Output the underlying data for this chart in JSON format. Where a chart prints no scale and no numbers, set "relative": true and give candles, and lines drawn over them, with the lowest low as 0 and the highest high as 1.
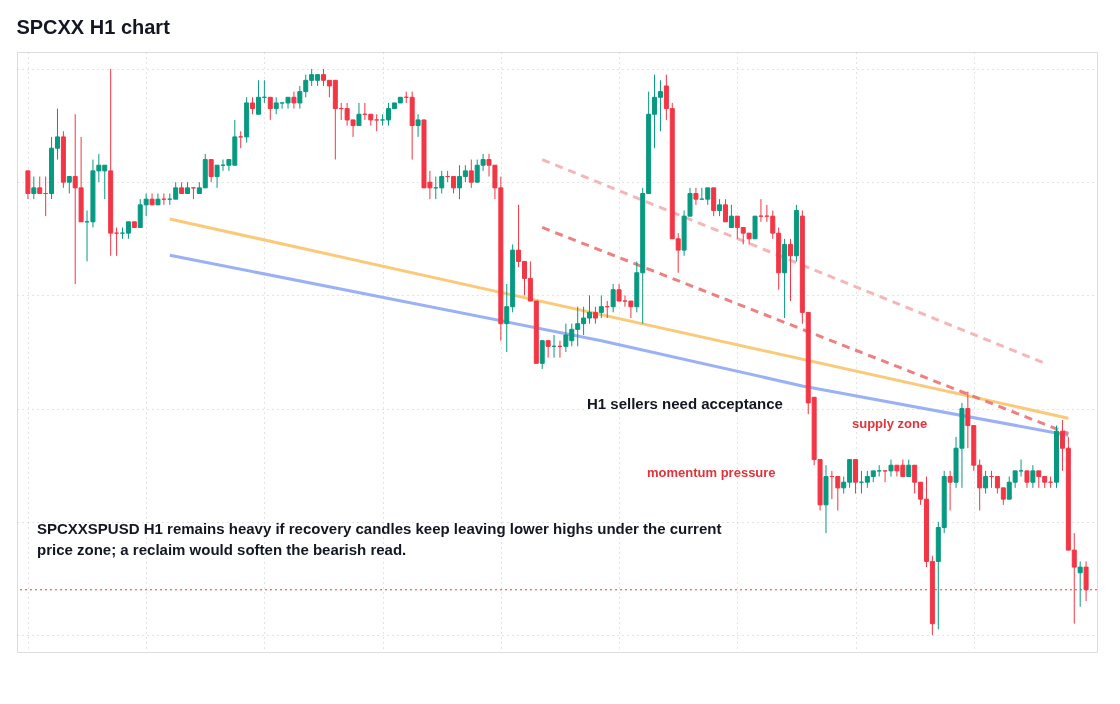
{
  "chart_data": {
    "type": "candlestick",
    "title": "SPCXX H1 chart",
    "relative": true,
    "grid": true,
    "tick_labels": false,
    "categories": [
      null,
      null,
      null,
      null,
      null,
      null,
      null,
      null,
      null,
      null,
      null,
      null,
      null,
      null,
      null,
      null,
      null,
      null,
      null,
      null,
      null,
      null,
      null,
      null,
      null,
      null,
      null,
      null,
      null,
      null,
      null,
      null,
      null,
      null,
      null,
      null,
      null,
      null,
      null,
      null,
      null,
      null,
      null,
      null,
      null,
      null,
      null,
      null,
      null,
      null,
      null,
      null,
      null,
      null,
      null,
      null,
      null,
      null,
      null,
      null,
      null,
      null,
      null,
      null,
      null,
      null,
      null,
      null,
      null,
      null,
      null,
      null,
      null,
      null,
      null,
      null,
      null,
      null,
      null,
      null,
      null,
      null,
      null,
      null,
      null,
      null,
      null,
      null,
      null,
      null,
      null,
      null,
      null,
      null,
      null,
      null,
      null,
      null,
      null,
      null,
      null,
      null,
      null,
      null,
      null,
      null,
      null,
      null,
      null,
      null,
      null,
      null,
      null,
      null,
      null,
      null,
      null,
      null,
      null,
      null,
      null,
      null,
      null,
      null,
      null,
      null,
      null,
      null,
      null,
      null,
      null,
      null,
      null,
      null,
      null,
      null,
      null,
      null,
      null,
      null,
      null,
      null,
      null,
      null,
      null,
      null,
      null,
      null,
      null,
      null,
      null,
      null,
      null,
      null,
      null,
      null,
      null,
      null,
      null,
      null,
      null,
      null,
      null,
      null,
      null,
      null,
      null,
      null,
      null,
      null,
      null,
      null,
      null,
      null,
      null,
      null,
      null,
      null,
      null,
      null
    ],
    "ohlc": [
      [
        0.82,
        0.82,
        0.77,
        0.78
      ],
      [
        0.78,
        0.81,
        0.77,
        0.79
      ],
      [
        0.79,
        0.81,
        0.78,
        0.78
      ],
      [
        0.78,
        0.81,
        0.74,
        0.78
      ],
      [
        0.78,
        0.88,
        0.77,
        0.86
      ],
      [
        0.86,
        0.93,
        0.84,
        0.88
      ],
      [
        0.88,
        0.89,
        0.79,
        0.8
      ],
      [
        0.8,
        0.81,
        0.78,
        0.81
      ],
      [
        0.81,
        0.92,
        0.62,
        0.79
      ],
      [
        0.79,
        0.88,
        0.73,
        0.73
      ],
      [
        0.73,
        0.75,
        0.66,
        0.73
      ],
      [
        0.73,
        0.84,
        0.72,
        0.82
      ],
      [
        0.82,
        0.85,
        0.8,
        0.83
      ],
      [
        0.82,
        0.83,
        0.77,
        0.83
      ],
      [
        0.82,
        1,
        0.67,
        0.71
      ],
      [
        0.71,
        0.72,
        0.67,
        0.71
      ],
      [
        0.71,
        0.72,
        0.7,
        0.71
      ],
      [
        0.71,
        0.73,
        0.7,
        0.73
      ],
      [
        0.73,
        0.73,
        0.72,
        0.72
      ],
      [
        0.72,
        0.77,
        0.72,
        0.76
      ],
      [
        0.76,
        0.78,
        0.74,
        0.77
      ],
      [
        0.77,
        0.78,
        0.76,
        0.76
      ],
      [
        0.76,
        0.78,
        0.76,
        0.77
      ],
      [
        0.77,
        0.78,
        0.76,
        0.77
      ],
      [
        0.77,
        0.78,
        0.76,
        0.77
      ],
      [
        0.77,
        0.8,
        0.77,
        0.79
      ],
      [
        0.79,
        0.8,
        0.78,
        0.78
      ],
      [
        0.78,
        0.8,
        0.78,
        0.79
      ],
      [
        0.79,
        0.79,
        0.77,
        0.79
      ],
      [
        0.78,
        0.8,
        0.78,
        0.79
      ],
      [
        0.79,
        0.85,
        0.79,
        0.84
      ],
      [
        0.84,
        0.84,
        0.8,
        0.81
      ],
      [
        0.81,
        0.83,
        0.79,
        0.83
      ],
      [
        0.83,
        0.84,
        0.82,
        0.83
      ],
      [
        0.83,
        0.84,
        0.82,
        0.84
      ],
      [
        0.83,
        0.91,
        0.83,
        0.88
      ],
      [
        0.88,
        0.89,
        0.86,
        0.88
      ],
      [
        0.88,
        0.95,
        0.87,
        0.94
      ],
      [
        0.94,
        0.95,
        0.92,
        0.93
      ],
      [
        0.92,
        0.98,
        0.92,
        0.95
      ],
      [
        0.95,
        0.98,
        0.94,
        0.95
      ],
      [
        0.95,
        0.95,
        0.91,
        0.93
      ],
      [
        0.93,
        0.95,
        0.92,
        0.94
      ],
      [
        0.94,
        0.94,
        0.93,
        0.94
      ],
      [
        0.94,
        0.95,
        0.93,
        0.95
      ],
      [
        0.95,
        0.96,
        0.93,
        0.94
      ],
      [
        0.94,
        0.97,
        0.93,
        0.96
      ],
      [
        0.96,
        0.99,
        0.95,
        0.98
      ],
      [
        0.98,
        1,
        0.97,
        0.99
      ],
      [
        0.98,
        0.99,
        0.97,
        0.99
      ],
      [
        0.99,
        1,
        0.97,
        0.98
      ],
      [
        0.98,
        0.98,
        0.95,
        0.97
      ],
      [
        0.98,
        0.98,
        0.84,
        0.93
      ],
      [
        0.93,
        0.94,
        0.91,
        0.93
      ],
      [
        0.93,
        0.94,
        0.9,
        0.91
      ],
      [
        0.91,
        0.91,
        0.88,
        0.9
      ],
      [
        0.9,
        0.94,
        0.9,
        0.92
      ],
      [
        0.92,
        0.94,
        0.91,
        0.92
      ],
      [
        0.92,
        0.92,
        0.9,
        0.91
      ],
      [
        0.91,
        0.92,
        0.89,
        0.91
      ],
      [
        0.91,
        0.92,
        0.9,
        0.91
      ],
      [
        0.91,
        0.94,
        0.9,
        0.93
      ],
      [
        0.93,
        0.94,
        0.93,
        0.94
      ],
      [
        0.94,
        0.95,
        0.94,
        0.95
      ],
      [
        0.95,
        0.96,
        0.94,
        0.95
      ],
      [
        0.95,
        0.96,
        0.84,
        0.9
      ],
      [
        0.9,
        0.92,
        0.88,
        0.91
      ],
      [
        0.91,
        0.91,
        0.79,
        0.79
      ],
      [
        0.8,
        0.82,
        0.77,
        0.79
      ],
      [
        0.79,
        0.81,
        0.77,
        0.79
      ],
      [
        0.79,
        0.82,
        0.78,
        0.81
      ],
      [
        0.81,
        0.82,
        0.8,
        0.81
      ],
      [
        0.81,
        0.81,
        0.78,
        0.79
      ],
      [
        0.79,
        0.83,
        0.77,
        0.81
      ],
      [
        0.81,
        0.83,
        0.8,
        0.82
      ],
      [
        0.82,
        0.84,
        0.79,
        0.8
      ],
      [
        0.8,
        0.84,
        0.8,
        0.83
      ],
      [
        0.83,
        0.85,
        0.82,
        0.84
      ],
      [
        0.84,
        0.85,
        0.81,
        0.83
      ],
      [
        0.83,
        0.83,
        0.77,
        0.79
      ],
      [
        0.79,
        0.81,
        0.52,
        0.55
      ],
      [
        0.55,
        0.62,
        0.5,
        0.58
      ],
      [
        0.58,
        0.69,
        0.57,
        0.68
      ],
      [
        0.68,
        0.76,
        0.65,
        0.66
      ],
      [
        0.66,
        0.66,
        0.6,
        0.63
      ],
      [
        0.63,
        0.66,
        0.59,
        0.59
      ],
      [
        0.59,
        0.59,
        0.48,
        0.48
      ],
      [
        0.48,
        0.52,
        0.47,
        0.52
      ],
      [
        0.52,
        0.52,
        0.49,
        0.51
      ],
      [
        0.51,
        0.53,
        0.49,
        0.51
      ],
      [
        0.51,
        0.52,
        0.49,
        0.51
      ],
      [
        0.51,
        0.55,
        0.5,
        0.53
      ],
      [
        0.52,
        0.55,
        0.51,
        0.54
      ],
      [
        0.54,
        0.58,
        0.51,
        0.55
      ],
      [
        0.55,
        0.58,
        0.53,
        0.56
      ],
      [
        0.56,
        0.6,
        0.55,
        0.57
      ],
      [
        0.57,
        0.58,
        0.55,
        0.56
      ],
      [
        0.57,
        0.6,
        0.56,
        0.58
      ],
      [
        0.58,
        0.59,
        0.56,
        0.58
      ],
      [
        0.58,
        0.62,
        0.57,
        0.61
      ],
      [
        0.61,
        0.62,
        0.59,
        0.59
      ],
      [
        0.59,
        0.6,
        0.58,
        0.59
      ],
      [
        0.59,
        0.59,
        0.56,
        0.58
      ],
      [
        0.58,
        0.66,
        0.57,
        0.64
      ],
      [
        0.64,
        0.79,
        0.55,
        0.78
      ],
      [
        0.78,
        0.96,
        0.78,
        0.92
      ],
      [
        0.92,
        0.99,
        0.86,
        0.95
      ],
      [
        0.95,
        0.98,
        0.89,
        0.96
      ],
      [
        0.97,
        0.99,
        0.91,
        0.93
      ],
      [
        0.93,
        0.94,
        0.7,
        0.7
      ],
      [
        0.7,
        0.71,
        0.64,
        0.68
      ],
      [
        0.68,
        0.75,
        0.67,
        0.74
      ],
      [
        0.74,
        0.79,
        0.74,
        0.78
      ],
      [
        0.78,
        0.79,
        0.76,
        0.77
      ],
      [
        0.77,
        0.79,
        0.77,
        0.77
      ],
      [
        0.77,
        0.79,
        0.76,
        0.79
      ],
      [
        0.79,
        0.79,
        0.74,
        0.75
      ],
      [
        0.75,
        0.77,
        0.74,
        0.76
      ],
      [
        0.76,
        0.77,
        0.73,
        0.73
      ],
      [
        0.72,
        0.76,
        0.72,
        0.74
      ],
      [
        0.74,
        0.74,
        0.7,
        0.72
      ],
      [
        0.72,
        0.72,
        0.69,
        0.71
      ],
      [
        0.71,
        0.71,
        0.69,
        0.7
      ],
      [
        0.7,
        0.74,
        0.7,
        0.74
      ],
      [
        0.74,
        0.77,
        0.73,
        0.74
      ],
      [
        0.74,
        0.76,
        0.73,
        0.74
      ],
      [
        0.74,
        0.75,
        0.7,
        0.71
      ],
      [
        0.71,
        0.72,
        0.61,
        0.64
      ],
      [
        0.64,
        0.7,
        0.56,
        0.69
      ],
      [
        0.69,
        0.7,
        0.59,
        0.67
      ],
      [
        0.67,
        0.76,
        0.66,
        0.75
      ],
      [
        0.74,
        0.75,
        0.55,
        0.57
      ],
      [
        0.57,
        0.57,
        0.39,
        0.41
      ],
      [
        0.42,
        0.42,
        0.3,
        0.31
      ],
      [
        0.31,
        0.31,
        0.22,
        0.23
      ],
      [
        0.23,
        0.3,
        0.18,
        0.28
      ],
      [
        0.28,
        0.29,
        0.24,
        0.28
      ],
      [
        0.28,
        0.28,
        0.22,
        0.26
      ],
      [
        0.26,
        0.28,
        0.25,
        0.27
      ],
      [
        0.27,
        0.31,
        0.26,
        0.31
      ],
      [
        0.31,
        0.31,
        0.25,
        0.27
      ],
      [
        0.27,
        0.29,
        0.25,
        0.27
      ],
      [
        0.27,
        0.29,
        0.26,
        0.28
      ],
      [
        0.28,
        0.29,
        0.27,
        0.29
      ],
      [
        0.29,
        0.3,
        0.28,
        0.29
      ],
      [
        0.29,
        0.29,
        0.27,
        0.29
      ],
      [
        0.29,
        0.31,
        0.28,
        0.3
      ],
      [
        0.3,
        0.3,
        0.28,
        0.29
      ],
      [
        0.3,
        0.31,
        0.28,
        0.28
      ],
      [
        0.28,
        0.31,
        0.28,
        0.3
      ],
      [
        0.3,
        0.3,
        0.25,
        0.27
      ],
      [
        0.27,
        0.27,
        0.23,
        0.24
      ],
      [
        0.24,
        0.28,
        0.12,
        0.13
      ],
      [
        0.13,
        0.14,
        0,
        0.02
      ],
      [
        0.13,
        0.2,
        0.01,
        0.19
      ],
      [
        0.19,
        0.29,
        0.18,
        0.28
      ],
      [
        0.28,
        0.29,
        0.22,
        0.27
      ],
      [
        0.27,
        0.35,
        0.26,
        0.33
      ],
      [
        0.33,
        0.41,
        0.26,
        0.4
      ],
      [
        0.4,
        0.43,
        0.33,
        0.37
      ],
      [
        0.37,
        0.37,
        0.29,
        0.3
      ],
      [
        0.3,
        0.31,
        0.22,
        0.26
      ],
      [
        0.26,
        0.29,
        0.25,
        0.28
      ],
      [
        0.28,
        0.29,
        0.26,
        0.28
      ],
      [
        0.28,
        0.28,
        0.25,
        0.26
      ],
      [
        0.26,
        0.26,
        0.23,
        0.24
      ],
      [
        0.24,
        0.28,
        0.24,
        0.27
      ],
      [
        0.27,
        0.29,
        0.26,
        0.29
      ],
      [
        0.29,
        0.31,
        0.28,
        0.29
      ],
      [
        0.29,
        0.29,
        0.26,
        0.27
      ],
      [
        0.27,
        0.3,
        0.26,
        0.29
      ],
      [
        0.29,
        0.29,
        0.26,
        0.28
      ],
      [
        0.28,
        0.28,
        0.26,
        0.27
      ],
      [
        0.27,
        0.28,
        0.26,
        0.27
      ],
      [
        0.27,
        0.37,
        0.26,
        0.36
      ],
      [
        0.36,
        0.38,
        0.29,
        0.33
      ],
      [
        0.33,
        0.35,
        0.15,
        0.15
      ],
      [
        0.15,
        0.18,
        0.02,
        0.12
      ],
      [
        0.11,
        0.13,
        0.05,
        0.12
      ],
      [
        0.12,
        0.13,
        0.06,
        0.08
      ]
    ],
    "colors": [
      "#f23645",
      "#089981",
      "#f23645",
      "#f23645",
      "#089981",
      "#089981",
      "#f23645",
      "#089981",
      "#f23645",
      "#f23645",
      "#089981",
      "#089981",
      "#089981",
      "#089981",
      "#f23645",
      "#f23645",
      "#089981",
      "#089981",
      "#f23645",
      "#089981",
      "#089981",
      "#f23645",
      "#089981",
      "#f23645",
      "#089981",
      "#089981",
      "#f23645",
      "#089981",
      "#f23645",
      "#089981",
      "#089981",
      "#f23645",
      "#089981",
      "#089981",
      "#089981",
      "#089981",
      "#f23645",
      "#089981",
      "#f23645",
      "#089981",
      "#089981",
      "#f23645",
      "#089981",
      "#089981",
      "#089981",
      "#f23645",
      "#089981",
      "#089981",
      "#089981",
      "#089981",
      "#f23645",
      "#f23645",
      "#f23645",
      "#f23645",
      "#f23645",
      "#f23645",
      "#089981",
      "#f23645",
      "#f23645",
      "#f23645",
      "#089981",
      "#089981",
      "#089981",
      "#089981",
      "#f23645",
      "#f23645",
      "#089981",
      "#f23645",
      "#f23645",
      "#089981",
      "#089981",
      "#f23645",
      "#f23645",
      "#089981",
      "#089981",
      "#f23645",
      "#089981",
      "#089981",
      "#f23645",
      "#f23645",
      "#f23645",
      "#089981",
      "#089981",
      "#f23645",
      "#f23645",
      "#f23645",
      "#f23645",
      "#089981",
      "#f23645",
      "#089981",
      "#f23645",
      "#089981",
      "#089981",
      "#089981",
      "#089981",
      "#089981",
      "#f23645",
      "#089981",
      "#f23645",
      "#089981",
      "#f23645",
      "#f23645",
      "#f23645",
      "#089981",
      "#089981",
      "#089981",
      "#089981",
      "#089981",
      "#f23645",
      "#f23645",
      "#f23645",
      "#089981",
      "#089981",
      "#f23645",
      "#089981",
      "#089981",
      "#f23645",
      "#089981",
      "#f23645",
      "#089981",
      "#f23645",
      "#f23645",
      "#f23645",
      "#089981",
      "#f23645",
      "#f23645",
      "#f23645",
      "#f23645",
      "#089981",
      "#f23645",
      "#089981",
      "#f23645",
      "#f23645",
      "#f23645",
      "#f23645",
      "#089981",
      "#f23645",
      "#f23645",
      "#089981",
      "#089981",
      "#f23645",
      "#089981",
      "#089981",
      "#089981",
      "#089981",
      "#f23645",
      "#089981",
      "#f23645",
      "#f23645",
      "#089981",
      "#f23645",
      "#f23645",
      "#f23645",
      "#f23645",
      "#089981",
      "#089981",
      "#f23645",
      "#089981",
      "#089981",
      "#f23645",
      "#f23645",
      "#f23645",
      "#089981",
      "#f23645",
      "#f23645",
      "#f23645",
      "#089981",
      "#089981",
      "#089981",
      "#f23645",
      "#089981",
      "#f23645",
      "#f23645",
      "#f23645",
      "#089981",
      "#f23645",
      "#f23645",
      "#f23645",
      "#089981",
      "#f23645"
    ],
    "series": [
      {
        "type": "line",
        "color": "#f8c46c",
        "line_style": "solid",
        "values": [
          null,
          null,
          null,
          null,
          null,
          null,
          null,
          null,
          null,
          null,
          null,
          null,
          null,
          null,
          null,
          null,
          null,
          null,
          null,
          null,
          null,
          null,
          null,
          null,
          0.735,
          null,
          null,
          null,
          null,
          null,
          null,
          null,
          null,
          null,
          null,
          null,
          null,
          null,
          null,
          null,
          null,
          null,
          null,
          null,
          null,
          null,
          null,
          null,
          null,
          null,
          null,
          null,
          null,
          null,
          null,
          null,
          null,
          null,
          null,
          null,
          null,
          null,
          null,
          null,
          null,
          null,
          null,
          null,
          null,
          null,
          null,
          null,
          null,
          null,
          null,
          null,
          null,
          null,
          null,
          null,
          null,
          null,
          null,
          null,
          null,
          null,
          null,
          null,
          null,
          null,
          null,
          null,
          null,
          null,
          null,
          null,
          null,
          null,
          null,
          null,
          null,
          null,
          null,
          null,
          null,
          null,
          null,
          null,
          null,
          null,
          null,
          null,
          null,
          null,
          null,
          null,
          null,
          null,
          null,
          null,
          null,
          null,
          null,
          null,
          null,
          null,
          null,
          null,
          null,
          null,
          null,
          null,
          null,
          null,
          null,
          null,
          null,
          null,
          null,
          null,
          null,
          null,
          null,
          null,
          null,
          null,
          null,
          null,
          null,
          null,
          null,
          null,
          null,
          null,
          null,
          null,
          null,
          null,
          null,
          null,
          null,
          null,
          null,
          null,
          null,
          null,
          null,
          null,
          null,
          null,
          null,
          null,
          null,
          null,
          null,
          null,
          0.383,
          null,
          null,
          null
        ]
      },
      {
        "type": "line",
        "color": "#8fa8f4",
        "line_style": "solid",
        "values": [
          null,
          null,
          null,
          null,
          null,
          null,
          null,
          null,
          null,
          null,
          null,
          null,
          null,
          null,
          null,
          null,
          null,
          null,
          null,
          null,
          null,
          null,
          null,
          null,
          0.671,
          null,
          null,
          null,
          null,
          null,
          null,
          null,
          null,
          null,
          null,
          null,
          null,
          null,
          null,
          null,
          null,
          null,
          null,
          null,
          null,
          null,
          null,
          null,
          null,
          null,
          null,
          null,
          null,
          null,
          null,
          null,
          null,
          null,
          null,
          null,
          null,
          null,
          null,
          null,
          null,
          null,
          null,
          null,
          null,
          null,
          null,
          null,
          null,
          null,
          null,
          null,
          null,
          null,
          null,
          null,
          null,
          null,
          null,
          null,
          null,
          null,
          null,
          null,
          null,
          null,
          null,
          null,
          null,
          null,
          null,
          null,
          null,
          0.52,
          null,
          null,
          null,
          null,
          null,
          null,
          null,
          null,
          null,
          null,
          null,
          null,
          null,
          null,
          null,
          null,
          null,
          null,
          null,
          null,
          null,
          null,
          null,
          null,
          null,
          null,
          null,
          null,
          null,
          null,
          null,
          null,
          null,
          0.44,
          null,
          null,
          null,
          null,
          null,
          null,
          null,
          null,
          null,
          null,
          null,
          null,
          null,
          null,
          null,
          null,
          null,
          null,
          null,
          null,
          null,
          null,
          null,
          null,
          null,
          null,
          null,
          null,
          null,
          null,
          null,
          null,
          null,
          null,
          null,
          null,
          null,
          null,
          null,
          null,
          null,
          null,
          null,
          null,
          0.353,
          null,
          null,
          null
        ]
      },
      {
        "type": "line",
        "color": "#f4aeb0",
        "line_style": "dashed",
        "values": [
          null,
          null,
          null,
          null,
          null,
          null,
          null,
          null,
          null,
          null,
          null,
          null,
          null,
          null,
          null,
          null,
          null,
          null,
          null,
          null,
          null,
          null,
          null,
          null,
          null,
          null,
          null,
          null,
          null,
          null,
          null,
          null,
          null,
          null,
          null,
          null,
          null,
          null,
          null,
          null,
          null,
          null,
          null,
          null,
          null,
          null,
          null,
          null,
          null,
          null,
          null,
          null,
          null,
          null,
          null,
          null,
          null,
          null,
          null,
          null,
          null,
          null,
          null,
          null,
          null,
          null,
          null,
          null,
          null,
          null,
          null,
          null,
          null,
          null,
          null,
          null,
          null,
          null,
          null,
          null,
          null,
          null,
          null,
          null,
          null,
          null,
          null,
          0.84,
          null,
          null,
          null,
          null,
          null,
          null,
          null,
          null,
          null,
          null,
          null,
          null,
          null,
          null,
          null,
          null,
          null,
          null,
          null,
          null,
          null,
          null,
          null,
          null,
          null,
          null,
          null,
          null,
          null,
          null,
          null,
          null,
          null,
          null,
          null,
          null,
          null,
          null,
          null,
          null,
          null,
          null,
          null,
          null,
          null,
          null,
          null,
          null,
          null,
          null,
          null,
          null,
          null,
          null,
          null,
          null,
          null,
          null,
          null,
          null,
          null,
          null,
          null,
          null,
          null,
          null,
          null,
          null,
          null,
          null,
          null,
          null,
          null,
          null,
          null,
          null,
          null,
          null,
          null,
          null,
          null,
          null,
          null,
          null,
          0.48,
          null,
          null,
          null,
          null,
          null,
          null,
          null
        ]
      },
      {
        "type": "line",
        "color": "#ec7274",
        "line_style": "dashed",
        "values": [
          null,
          null,
          null,
          null,
          null,
          null,
          null,
          null,
          null,
          null,
          null,
          null,
          null,
          null,
          null,
          null,
          null,
          null,
          null,
          null,
          null,
          null,
          null,
          null,
          null,
          null,
          null,
          null,
          null,
          null,
          null,
          null,
          null,
          null,
          null,
          null,
          null,
          null,
          null,
          null,
          null,
          null,
          null,
          null,
          null,
          null,
          null,
          null,
          null,
          null,
          null,
          null,
          null,
          null,
          null,
          null,
          null,
          null,
          null,
          null,
          null,
          null,
          null,
          null,
          null,
          null,
          null,
          null,
          null,
          null,
          null,
          null,
          null,
          null,
          null,
          null,
          null,
          null,
          null,
          null,
          null,
          null,
          null,
          null,
          null,
          null,
          null,
          0.72,
          null,
          null,
          null,
          null,
          null,
          null,
          null,
          null,
          null,
          null,
          null,
          null,
          null,
          null,
          null,
          null,
          null,
          null,
          null,
          null,
          null,
          null,
          null,
          null,
          null,
          null,
          null,
          null,
          null,
          null,
          null,
          null,
          null,
          null,
          null,
          null,
          null,
          null,
          null,
          null,
          null,
          null,
          null,
          null,
          null,
          null,
          null,
          null,
          null,
          null,
          null,
          null,
          null,
          null,
          null,
          null,
          null,
          null,
          null,
          null,
          null,
          null,
          null,
          null,
          null,
          null,
          null,
          null,
          null,
          null,
          null,
          null,
          null,
          null,
          null,
          null,
          null,
          null,
          null,
          null,
          null,
          null,
          null,
          null,
          null,
          null,
          null,
          null,
          0.356,
          null,
          null,
          null
        ]
      }
    ],
    "ref_lines": [
      {
        "axis": "y",
        "value": 0.08,
        "color": "#f23645",
        "line_style": "dotted"
      }
    ],
    "annotations": [
      "H1 sellers need acceptance",
      "supply zone",
      "momentum pressure",
      "SPCXXSPUSD H1 remains heavy if recovery candles keep leaving lower highs under the current price zone; a reclaim would soften the bearish read."
    ]
  }
}
